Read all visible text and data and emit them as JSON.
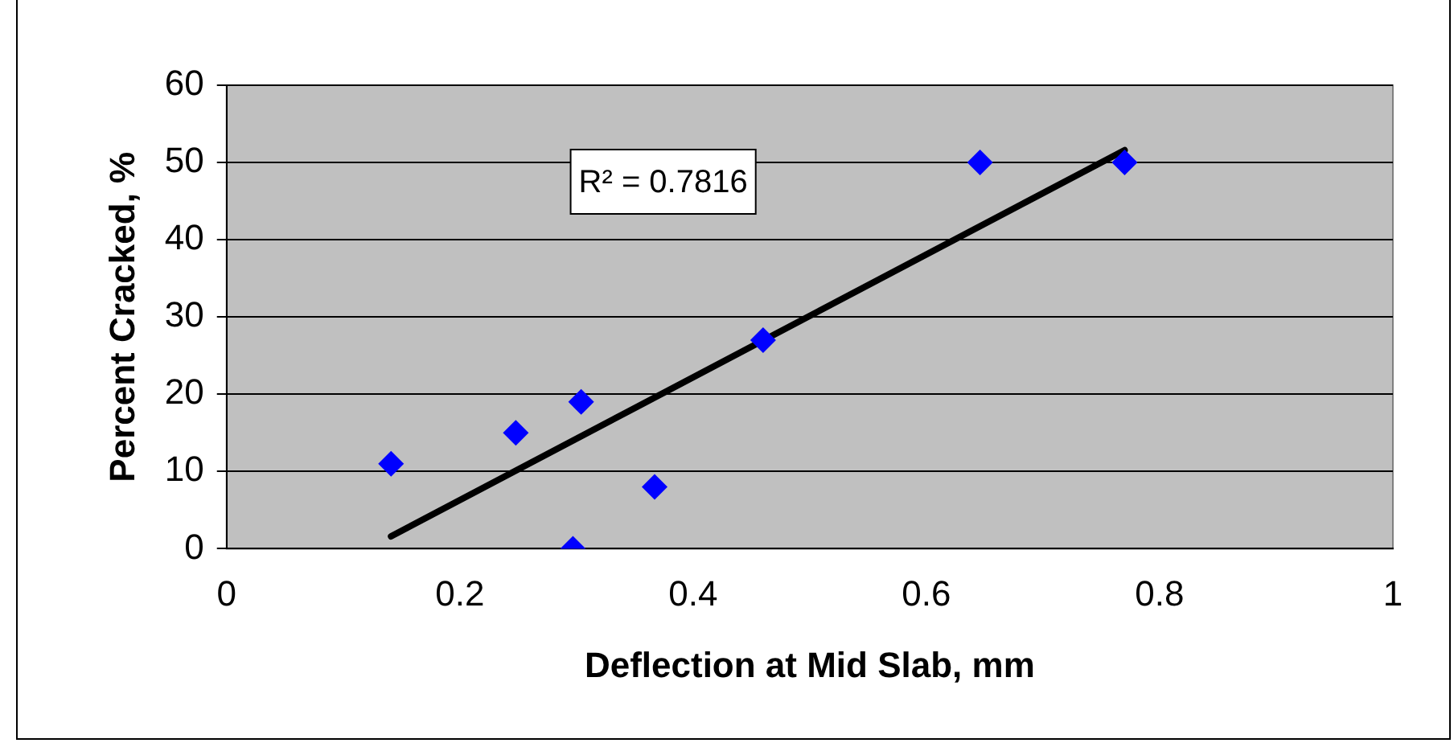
{
  "chart_data": {
    "type": "scatter",
    "xlabel": "Deflection at Mid Slab, mm",
    "ylabel": "Percent Cracked, %",
    "xlim": [
      0,
      1
    ],
    "xticks": [
      0,
      0.2,
      0.4,
      0.6,
      0.8,
      1
    ],
    "ylim": [
      0,
      60
    ],
    "yticks": [
      0,
      10,
      20,
      30,
      40,
      50,
      60
    ],
    "grid": "y",
    "legend": false,
    "marker": "diamond",
    "series": [
      {
        "type": "scatter",
        "color": "#0000ff",
        "x": [
          0.141,
          0.248,
          0.304,
          0.297,
          0.367,
          0.46,
          0.646,
          0.77
        ],
        "values": [
          11,
          15,
          19,
          0,
          8,
          27,
          50,
          50
        ]
      },
      {
        "type": "line",
        "color": "#000000",
        "marker": "none",
        "line_style": "solid",
        "x": [
          0.141,
          0.77
        ],
        "values": [
          1.6,
          51.6
        ]
      }
    ],
    "annotations": [
      "R² = 0.7816"
    ]
  }
}
